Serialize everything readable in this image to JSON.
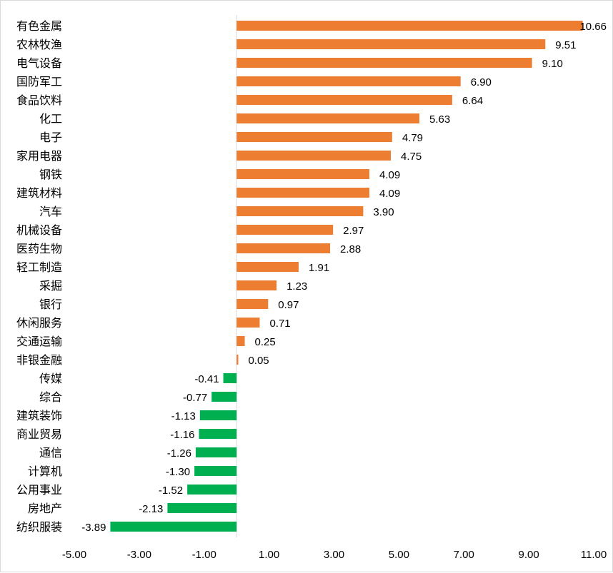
{
  "chart_data": {
    "type": "bar",
    "orientation": "horizontal",
    "categories": [
      "有色金属",
      "农林牧渔",
      "电气设备",
      "国防军工",
      "食品饮料",
      "化工",
      "电子",
      "家用电器",
      "钢铁",
      "建筑材料",
      "汽车",
      "机械设备",
      "医药生物",
      "轻工制造",
      "采掘",
      "银行",
      "休闲服务",
      "交通运输",
      "非银金融",
      "传媒",
      "综合",
      "建筑装饰",
      "商业贸易",
      "通信",
      "计算机",
      "公用事业",
      "房地产",
      "纺织服装"
    ],
    "values": [
      10.66,
      9.51,
      9.1,
      6.9,
      6.64,
      5.63,
      4.79,
      4.75,
      4.09,
      4.09,
      3.9,
      2.97,
      2.88,
      1.91,
      1.23,
      0.97,
      0.71,
      0.25,
      0.05,
      -0.41,
      -0.77,
      -1.13,
      -1.16,
      -1.26,
      -1.3,
      -1.52,
      -2.13,
      -3.89
    ],
    "value_labels": [
      "10.66",
      "9.51",
      "9.10",
      "6.90",
      "6.64",
      "5.63",
      "4.79",
      "4.75",
      "4.09",
      "4.09",
      "3.90",
      "2.97",
      "2.88",
      "1.91",
      "1.23",
      "0.97",
      "0.71",
      "0.25",
      "0.05",
      "-0.41",
      "-0.77",
      "-1.13",
      "-1.16",
      "-1.26",
      "-1.30",
      "-1.52",
      "-2.13",
      "-3.89"
    ],
    "x_ticks": [
      "-5.00",
      "-3.00",
      "-1.00",
      "1.00",
      "3.00",
      "5.00",
      "7.00",
      "9.00",
      "11.00"
    ],
    "xlim": [
      -5,
      11
    ],
    "title": "",
    "xlabel": "",
    "ylabel": "",
    "grid": false,
    "legend": "none",
    "colors": {
      "positive": "#ED7D31",
      "negative": "#00B050",
      "axis": "#d9d9d9"
    }
  }
}
